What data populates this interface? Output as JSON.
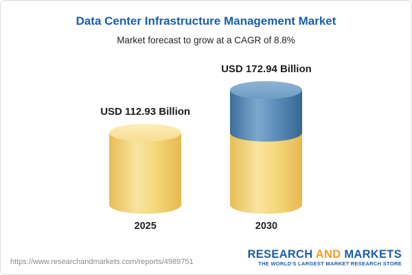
{
  "chart_data": {
    "type": "bar",
    "variant": "cylinder-3d",
    "title": "Data Center Infrastructure Management Market",
    "subtitle": "Market forecast to grow at a CAGR of 8.8%",
    "categories": [
      "2025",
      "2030"
    ],
    "values": [
      112.93,
      172.94
    ],
    "value_labels": [
      "USD 112.93 Billion",
      "USD 172.94 Billion"
    ],
    "unit": "USD Billion",
    "cagr": "8.8%",
    "legend_position": "none",
    "axes_visible": false,
    "colors": {
      "bar_yellow": "#f6d97e",
      "bar_blue_growth_segment": "#5e90bd",
      "title_blue": "#1a5dab",
      "logo_orange": "#f09e1f"
    }
  },
  "footer": {
    "url": "https://www.researchandmarkets.com/reports/4989751",
    "logo": {
      "part1": "RESEARCH",
      "part2": "AND",
      "part3": "MARKETS",
      "tagline": "THE WORLD'S LARGEST MARKET RESEARCH STORE"
    }
  }
}
